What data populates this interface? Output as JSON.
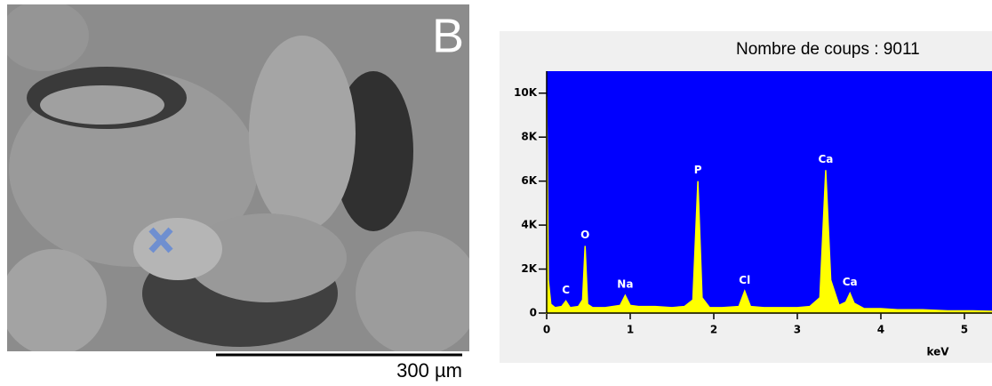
{
  "image": {
    "panel_label": "B",
    "scale_bar": "300 µm"
  },
  "chart_data": {
    "type": "area",
    "title": "Nombre de coups : 9011",
    "xlabel": "keV",
    "background": "#0000ff",
    "x": [
      0,
      0.02,
      0.05,
      0.1,
      0.18,
      0.23,
      0.28,
      0.38,
      0.43,
      0.46,
      0.49,
      0.55,
      0.7,
      0.88,
      0.94,
      1.0,
      1.1,
      1.3,
      1.5,
      1.65,
      1.75,
      1.81,
      1.86,
      1.95,
      2.1,
      2.3,
      2.37,
      2.44,
      2.6,
      2.8,
      3.0,
      3.15,
      3.27,
      3.34,
      3.4,
      3.5,
      3.58,
      3.63,
      3.68,
      3.8,
      4.0,
      4.2,
      4.5,
      4.8,
      5.1,
      5.33
    ],
    "series": [
      {
        "color": "#ffff00",
        "values": [
          9850,
          1500,
          400,
          250,
          300,
          550,
          250,
          300,
          600,
          3050,
          400,
          250,
          250,
          350,
          800,
          350,
          300,
          300,
          250,
          300,
          600,
          6000,
          700,
          250,
          250,
          300,
          1000,
          300,
          250,
          250,
          250,
          300,
          700,
          6500,
          1500,
          350,
          500,
          900,
          450,
          200,
          200,
          150,
          150,
          100,
          100,
          80
        ]
      }
    ],
    "annotations": [
      {
        "text": "C",
        "x": 0.23,
        "y": 550
      },
      {
        "text": "O",
        "x": 0.46,
        "y": 3050
      },
      {
        "text": "Na",
        "x": 0.94,
        "y": 800
      },
      {
        "text": "P",
        "x": 1.81,
        "y": 6000
      },
      {
        "text": "Cl",
        "x": 2.37,
        "y": 1000
      },
      {
        "text": "Ca",
        "x": 3.34,
        "y": 6500
      },
      {
        "text": "Ca",
        "x": 3.63,
        "y": 900
      }
    ],
    "xlim": [
      0,
      5.33
    ],
    "ylim": [
      0,
      11000
    ],
    "xticks": [
      0,
      1,
      2,
      3,
      4,
      5
    ],
    "yticks": [
      0,
      {
        "value": 2000,
        "label": "2K"
      },
      {
        "value": 4000,
        "label": "4K"
      },
      {
        "value": 6000,
        "label": "6K"
      },
      {
        "value": 8000,
        "label": "8K"
      },
      {
        "value": 10000,
        "label": "10K"
      }
    ]
  }
}
